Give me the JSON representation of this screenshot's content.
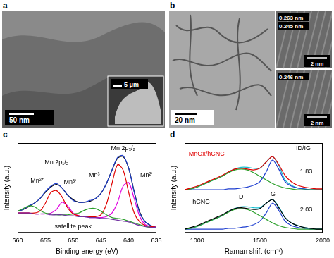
{
  "images": [
    {
      "panel": "a",
      "scale_bar": "50 nm",
      "inset_scale_bar": "5 μm"
    },
    {
      "panel": "b",
      "scale_bar": "20 nm",
      "insets": [
        {
          "annotations": [
            "0.263 nm",
            "0.245 nm"
          ],
          "scale_bar": "2 nm"
        },
        {
          "annotations": [
            "0.246 nm"
          ],
          "scale_bar": "2 nm"
        }
      ]
    }
  ],
  "chart_data": [
    {
      "panel": "c",
      "type": "line",
      "x_label": "Binding energy (eV)",
      "y_label": "Intensity (a.u.)",
      "x": [
        660,
        659,
        658,
        657,
        656,
        655,
        654,
        653,
        652,
        651,
        650,
        649,
        648,
        647,
        646,
        645,
        644,
        643,
        642,
        641,
        640,
        639,
        638,
        637,
        636,
        635
      ],
      "xlim": [
        660,
        635
      ],
      "xticks": [
        660,
        655,
        650,
        645,
        640,
        635
      ],
      "ylim": [
        0,
        100
      ],
      "tick_labels": "x",
      "grid": false,
      "series": [
        {
          "color": "#7030a0",
          "values": [
            22,
            22,
            22,
            21,
            21,
            21,
            20,
            20,
            20,
            19,
            19,
            18,
            18,
            17,
            17,
            16,
            16,
            15,
            14,
            13,
            12,
            10,
            8,
            7,
            6,
            6
          ]
        },
        {
          "color": "#2ca02c",
          "values": [
            24,
            27,
            30,
            29,
            25,
            22,
            21,
            20,
            20,
            20,
            21,
            22,
            25,
            27,
            27,
            24,
            20,
            17,
            16,
            15,
            13,
            11,
            9,
            7,
            6,
            6
          ]
        },
        {
          "color": "#e00000",
          "values": [
            22,
            22,
            22,
            22,
            24,
            33,
            45,
            47,
            40,
            28,
            21,
            19,
            18,
            18,
            18,
            20,
            32,
            55,
            76,
            70,
            45,
            22,
            12,
            8,
            7,
            6
          ]
        },
        {
          "color": "#e000e0",
          "values": [
            22,
            22,
            22,
            21,
            21,
            21,
            22,
            26,
            34,
            30,
            22,
            19,
            18,
            17,
            17,
            17,
            18,
            22,
            34,
            52,
            56,
            38,
            18,
            9,
            7,
            6
          ]
        },
        {
          "color": "#1f3fd0",
          "values": [
            24,
            26,
            30,
            33,
            38,
            46,
            52,
            55,
            50,
            42,
            36,
            34,
            34,
            36,
            38,
            44,
            55,
            70,
            84,
            86,
            72,
            45,
            22,
            12,
            8,
            6
          ]
        },
        {
          "color": "#000000",
          "values": [
            24,
            26,
            29,
            33,
            38,
            45,
            51,
            54,
            50,
            42,
            37,
            34,
            34,
            35,
            38,
            44,
            55,
            70,
            83,
            85,
            72,
            46,
            23,
            12,
            8,
            6
          ]
        }
      ],
      "annotations": [
        {
          "text": "Mn 2p₁/₂"
        },
        {
          "text": "Mn 2p₃/₂"
        },
        {
          "text": "Mn²⁺"
        },
        {
          "text": "Mn³⁺"
        },
        {
          "text": "Mn³⁺"
        },
        {
          "text": "Mn²⁺"
        },
        {
          "text": "satellite peak"
        }
      ]
    },
    {
      "panel": "d",
      "type": "line",
      "x_label": "Raman shift (cm⁻¹)",
      "y_label": "Intensity (a.u.)",
      "x": [
        900,
        950,
        1000,
        1050,
        1100,
        1150,
        1200,
        1250,
        1300,
        1350,
        1400,
        1450,
        1500,
        1550,
        1600,
        1650,
        1700,
        1750,
        1800,
        1850,
        1900,
        1950,
        2000
      ],
      "xlim": [
        900,
        2000
      ],
      "xticks": [
        1000,
        1500,
        2000
      ],
      "ylim": [
        0,
        100
      ],
      "tick_labels": "x",
      "grid": false,
      "series": [
        {
          "color": "#000000",
          "values": [
            4,
            6,
            8,
            11,
            14,
            17,
            20,
            24,
            27,
            28,
            27,
            26,
            27,
            33,
            37,
            28,
            17,
            11,
            8,
            6,
            5,
            4,
            4
          ]
        },
        {
          "color": "#2ca02c",
          "values": [
            4,
            5,
            7,
            10,
            13,
            16,
            19,
            23,
            26,
            27,
            26,
            23,
            19,
            15,
            11,
            8,
            6,
            5,
            4,
            4,
            4,
            4,
            4
          ]
        },
        {
          "color": "#1f3fd0",
          "values": [
            4,
            4,
            4,
            4,
            4,
            4,
            4,
            5,
            5,
            6,
            7,
            9,
            13,
            22,
            33,
            25,
            13,
            8,
            6,
            5,
            4,
            4,
            4
          ]
        },
        {
          "color": "#17becf",
          "values": [
            4,
            5,
            7,
            10,
            13,
            16,
            19,
            24,
            27,
            29,
            29,
            28,
            28,
            33,
            37,
            29,
            17,
            11,
            8,
            6,
            5,
            4,
            4
          ]
        },
        {
          "color": "#e00000",
          "values": [
            48,
            50,
            52,
            55,
            58,
            61,
            64,
            68,
            71,
            72,
            71,
            70,
            72,
            79,
            85,
            76,
            64,
            57,
            53,
            51,
            50,
            49,
            49
          ]
        },
        {
          "color": "#2ca02c",
          "values": [
            48,
            49,
            51,
            54,
            57,
            60,
            63,
            67,
            70,
            71,
            70,
            67,
            63,
            59,
            55,
            52,
            50,
            49,
            48,
            48,
            48,
            48,
            48
          ]
        },
        {
          "color": "#1f3fd0",
          "values": [
            48,
            48,
            48,
            48,
            48,
            48,
            48,
            49,
            49,
            50,
            51,
            53,
            57,
            68,
            81,
            71,
            57,
            52,
            50,
            49,
            48,
            48,
            48
          ]
        },
        {
          "color": "#17becf",
          "values": [
            48,
            49,
            51,
            54,
            57,
            60,
            63,
            68,
            71,
            73,
            73,
            72,
            72,
            79,
            85,
            75,
            59,
            53,
            50,
            49,
            48,
            48,
            48
          ]
        }
      ],
      "annotations": [
        {
          "text": "MnOx/hCNC",
          "color": "#e00000"
        },
        {
          "text": "hCNC",
          "color": "#000000"
        },
        {
          "text": "ID/IG",
          "color": "#000000"
        },
        {
          "text": "1.83",
          "color": "#000000"
        },
        {
          "text": "2.03",
          "color": "#000000"
        },
        {
          "text": "D",
          "color": "#000000"
        },
        {
          "text": "G",
          "color": "#000000"
        }
      ]
    }
  ]
}
